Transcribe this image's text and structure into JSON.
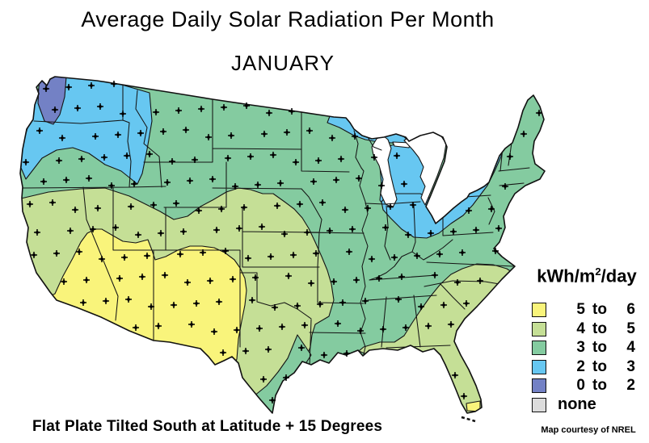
{
  "title": "Average Daily Solar Radiation Per Month",
  "subtitle": "JANUARY",
  "caption": "Flat Plate Tilted South at Latitude + 15 Degrees",
  "credit": "Map courtesy of NREL",
  "legend": {
    "unit": {
      "prefix": "kWh/m",
      "sup": "2",
      "suffix": "/day"
    },
    "items": [
      {
        "from": "5",
        "to": "6",
        "color": "#F9F47B",
        "dotted": false
      },
      {
        "from": "4",
        "to": "5",
        "color": "#C5DF96",
        "dotted": false
      },
      {
        "from": "3",
        "to": "4",
        "color": "#84CBA0",
        "dotted": false
      },
      {
        "from": "2",
        "to": "3",
        "color": "#67C7F1",
        "dotted": false
      },
      {
        "from": "0",
        "to": "2",
        "color": "#7381C5",
        "dotted": false
      },
      {
        "label": "none",
        "color": "#DCDCDC",
        "dotted": true
      }
    ]
  },
  "map": {
    "background": "#FFFFFF",
    "border_color": "#141414",
    "lake_color": "#FFFFFF",
    "region_colors": {
      "r5to6": "#F9F47B",
      "r4to5": "#C5DF96",
      "r3to4": "#84CBA0",
      "r2to3": "#67C7F1",
      "r0to2": "#7381C5"
    },
    "marker": {
      "symbol": "station-cross",
      "color": "#000000"
    }
  }
}
